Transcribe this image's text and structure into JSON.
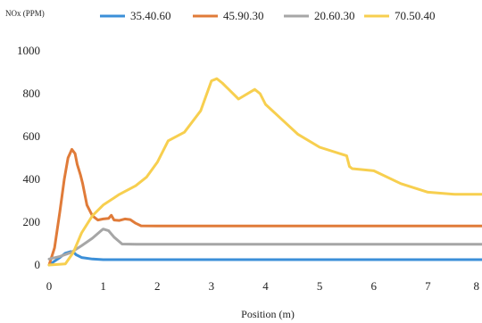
{
  "chart_data": {
    "type": "line",
    "ylabel": "NOx (PPM)",
    "xlabel": "Position (m)",
    "xlim": [
      0,
      8
    ],
    "ylim": [
      0,
      1000
    ],
    "xticks": [
      0,
      1,
      2,
      3,
      4,
      5,
      6,
      7,
      8
    ],
    "yticks": [
      0,
      200,
      400,
      600,
      800,
      1000
    ],
    "grid": false,
    "legend": "top",
    "series": [
      {
        "name": "35.40.60",
        "color": "#3b8fd8",
        "points": [
          [
            0,
            0
          ],
          [
            0.1,
            18
          ],
          [
            0.2,
            35
          ],
          [
            0.3,
            55
          ],
          [
            0.4,
            63
          ],
          [
            0.45,
            60
          ],
          [
            0.5,
            48
          ],
          [
            0.6,
            35
          ],
          [
            0.8,
            28
          ],
          [
            1.0,
            25
          ],
          [
            2,
            25
          ],
          [
            4,
            25
          ],
          [
            6,
            25
          ],
          [
            8,
            25
          ]
        ]
      },
      {
        "name": "45.90.30",
        "color": "#e07b39",
        "points": [
          [
            0,
            0
          ],
          [
            0.1,
            80
          ],
          [
            0.2,
            250
          ],
          [
            0.28,
            400
          ],
          [
            0.35,
            500
          ],
          [
            0.42,
            540
          ],
          [
            0.48,
            520
          ],
          [
            0.52,
            470
          ],
          [
            0.58,
            420
          ],
          [
            0.62,
            380
          ],
          [
            0.7,
            280
          ],
          [
            0.8,
            230
          ],
          [
            0.9,
            210
          ],
          [
            1.0,
            215
          ],
          [
            1.1,
            218
          ],
          [
            1.15,
            232
          ],
          [
            1.2,
            210
          ],
          [
            1.3,
            208
          ],
          [
            1.4,
            215
          ],
          [
            1.5,
            212
          ],
          [
            1.6,
            195
          ],
          [
            1.7,
            183
          ],
          [
            2,
            182
          ],
          [
            4,
            182
          ],
          [
            6,
            182
          ],
          [
            8,
            182
          ]
        ]
      },
      {
        "name": "20.60.30",
        "color": "#a6a6a6",
        "points": [
          [
            0,
            28
          ],
          [
            0.2,
            40
          ],
          [
            0.4,
            58
          ],
          [
            0.6,
            90
          ],
          [
            0.8,
            125
          ],
          [
            0.95,
            158
          ],
          [
            1.0,
            168
          ],
          [
            1.1,
            160
          ],
          [
            1.2,
            130
          ],
          [
            1.35,
            98
          ],
          [
            1.6,
            97
          ],
          [
            2,
            97
          ],
          [
            4,
            97
          ],
          [
            6,
            97
          ],
          [
            8,
            97
          ]
        ]
      },
      {
        "name": "70.50.40",
        "color": "#f7cf4f",
        "points": [
          [
            0,
            0
          ],
          [
            0.3,
            5
          ],
          [
            0.45,
            60
          ],
          [
            0.6,
            150
          ],
          [
            0.8,
            230
          ],
          [
            1.0,
            280
          ],
          [
            1.3,
            330
          ],
          [
            1.6,
            370
          ],
          [
            1.8,
            410
          ],
          [
            2.0,
            480
          ],
          [
            2.2,
            580
          ],
          [
            2.5,
            620
          ],
          [
            2.8,
            720
          ],
          [
            3.0,
            860
          ],
          [
            3.1,
            870
          ],
          [
            3.2,
            850
          ],
          [
            3.5,
            775
          ],
          [
            3.8,
            820
          ],
          [
            3.9,
            800
          ],
          [
            4.0,
            750
          ],
          [
            4.3,
            680
          ],
          [
            4.6,
            610
          ],
          [
            5.0,
            550
          ],
          [
            5.5,
            510
          ],
          [
            5.55,
            460
          ],
          [
            5.6,
            450
          ],
          [
            6.0,
            440
          ],
          [
            6.5,
            380
          ],
          [
            7.0,
            340
          ],
          [
            7.5,
            330
          ],
          [
            8,
            330
          ]
        ]
      }
    ]
  }
}
